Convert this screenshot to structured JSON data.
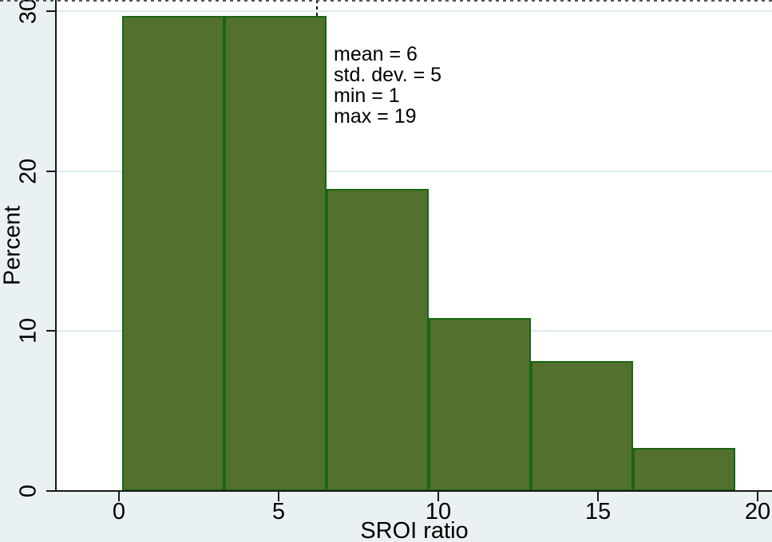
{
  "figure": {
    "background_color": "#eaf1f3",
    "plot_background": "#ffffff",
    "grid_color": "#dcecf2",
    "axis_color": "#1a1a1a",
    "bar_fill": "#53702c",
    "bar_border": "#166616",
    "mean_line_color": "#111111"
  },
  "chart_data": {
    "type": "bar",
    "subtype": "histogram",
    "title": "",
    "xlabel": "SROI ratio",
    "ylabel": "Percent",
    "x_ticks": [
      0,
      5,
      10,
      15,
      20
    ],
    "y_ticks": [
      0,
      10,
      20,
      30
    ],
    "xlim": [
      -1.95,
      20.45
    ],
    "ylim": [
      0,
      30.7
    ],
    "grid": true,
    "legend": "none",
    "bin_edges": [
      0.1,
      3.3,
      6.5,
      9.7,
      12.9,
      16.1,
      19.3
    ],
    "bin_heights_percent": [
      29.7,
      29.7,
      18.9,
      10.8,
      8.1,
      2.7
    ],
    "annotations": {
      "stats_lines": [
        "mean = 6",
        "std. dev. = 5",
        "min = 1",
        "max = 19"
      ],
      "mean_line_x": 6.2
    }
  }
}
